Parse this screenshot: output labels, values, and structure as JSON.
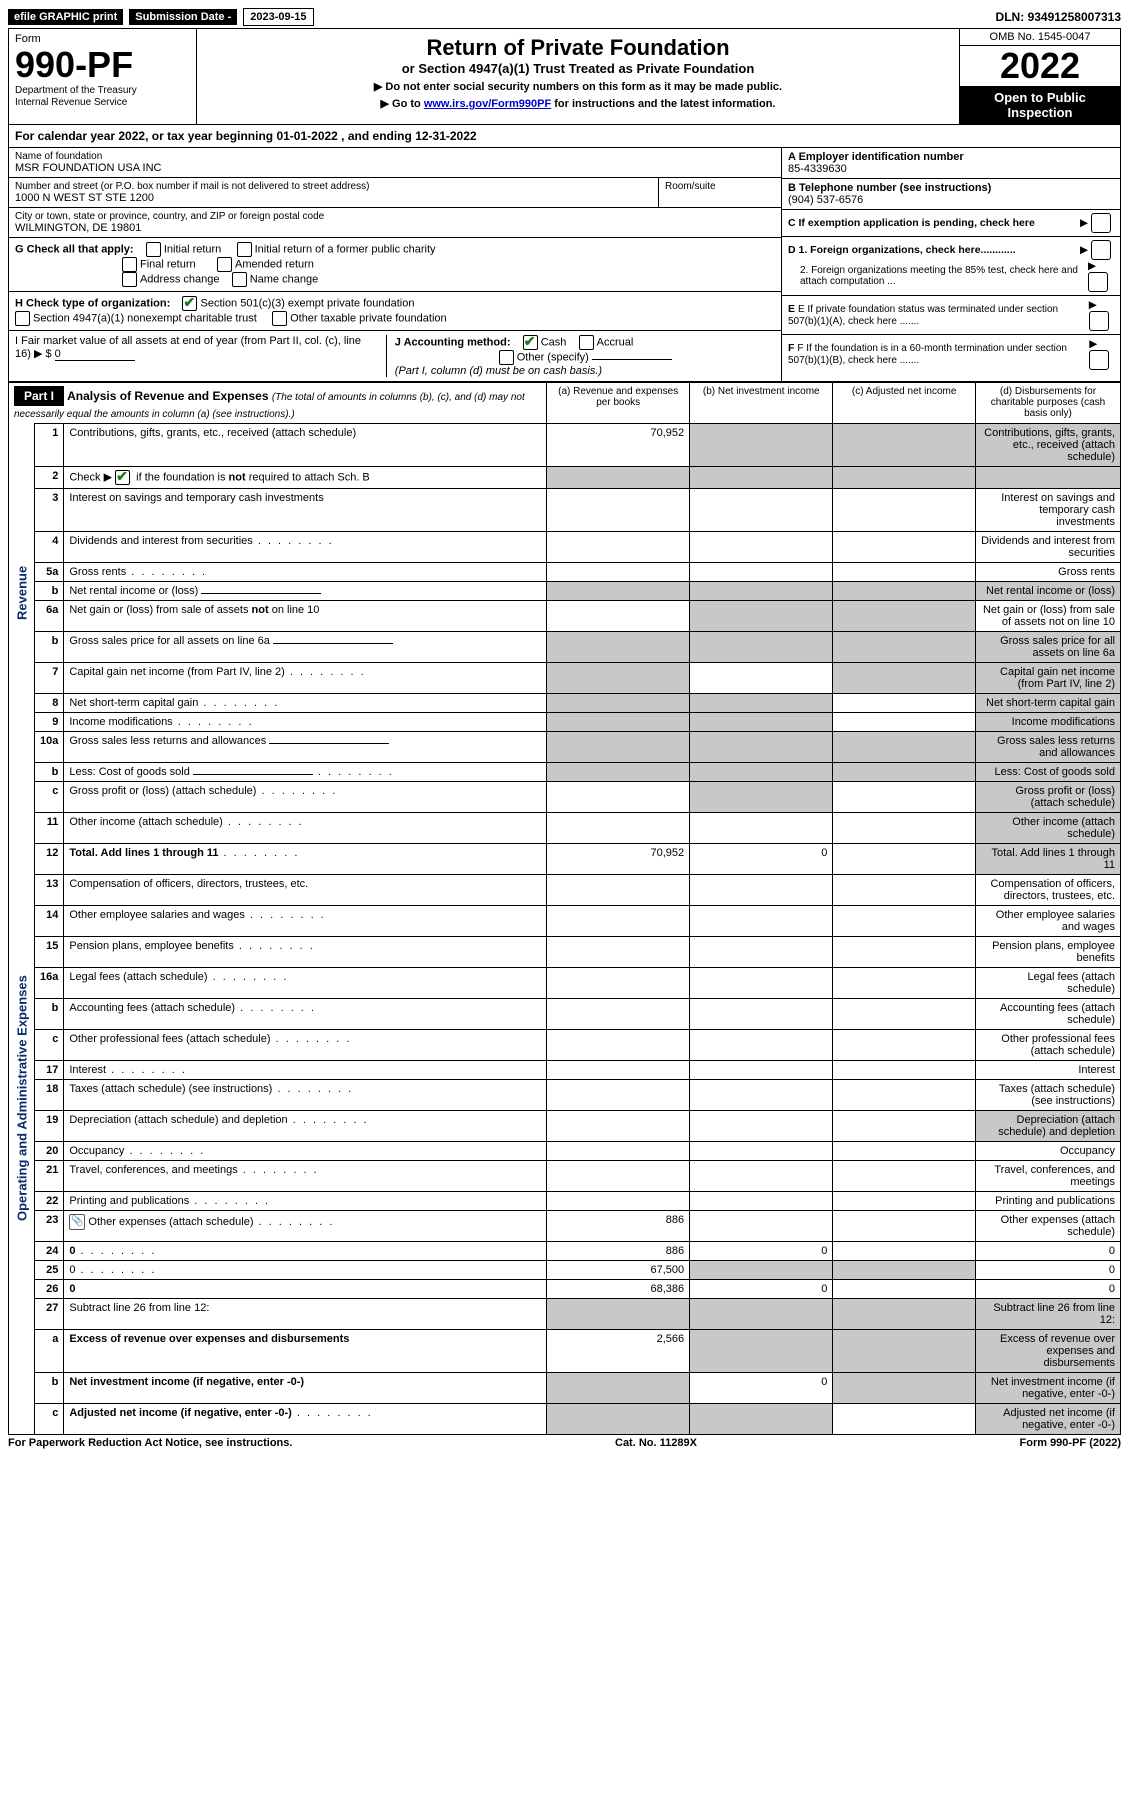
{
  "topbar": {
    "efile_label": "efile GRAPHIC print",
    "submission_label": "Submission Date -",
    "submission_date": "2023-09-15",
    "dln_label": "DLN:",
    "dln": "93491258007313"
  },
  "header": {
    "form_label": "Form",
    "form_number": "990-PF",
    "dept1": "Department of the Treasury",
    "dept2": "Internal Revenue Service",
    "title": "Return of Private Foundation",
    "subtitle": "or Section 4947(a)(1) Trust Treated as Private Foundation",
    "note1": "▶ Do not enter social security numbers on this form as it may be made public.",
    "note2_pre": "▶ Go to ",
    "note2_link": "www.irs.gov/Form990PF",
    "note2_post": " for instructions and the latest information.",
    "omb": "OMB No. 1545-0047",
    "year": "2022",
    "open_public": "Open to Public Inspection"
  },
  "calyear": {
    "text_pre": "For calendar year 2022, or tax year beginning ",
    "begin": "01-01-2022",
    "text_mid": " , and ending ",
    "end": "12-31-2022"
  },
  "info": {
    "name_label": "Name of foundation",
    "name": "MSR FOUNDATION USA INC",
    "addr_label": "Number and street (or P.O. box number if mail is not delivered to street address)",
    "addr": "1000 N WEST ST STE 1200",
    "room_label": "Room/suite",
    "city_label": "City or town, state or province, country, and ZIP or foreign postal code",
    "city": "WILMINGTON, DE  19801",
    "ein_label": "A Employer identification number",
    "ein": "85-4339630",
    "tel_label": "B Telephone number (see instructions)",
    "tel": "(904) 537-6576",
    "c_label": "C If exemption application is pending, check here",
    "d1": "D 1. Foreign organizations, check here............",
    "d2": "2. Foreign organizations meeting the 85% test, check here and attach computation ...",
    "e_label": "E  If private foundation status was terminated under section 507(b)(1)(A), check here .......",
    "f_label": "F  If the foundation is in a 60-month termination under section 507(b)(1)(B), check here .......",
    "g_label": "G Check all that apply:",
    "g_opts": [
      "Initial return",
      "Initial return of a former public charity",
      "Final return",
      "Amended return",
      "Address change",
      "Name change"
    ],
    "h_label": "H Check type of organization:",
    "h_opt1": "Section 501(c)(3) exempt private foundation",
    "h_opt2": "Section 4947(a)(1) nonexempt charitable trust",
    "h_opt3": "Other taxable private foundation",
    "i_label": "I Fair market value of all assets at end of year (from Part II, col. (c), line 16) ▶ $",
    "i_value": "0",
    "j_label": "J Accounting method:",
    "j_cash": "Cash",
    "j_accrual": "Accrual",
    "j_other": "Other (specify)",
    "j_note": "(Part I, column (d) must be on cash basis.)"
  },
  "part1": {
    "label": "Part I",
    "title": "Analysis of Revenue and Expenses",
    "title_note": "(The total of amounts in columns (b), (c), and (d) may not necessarily equal the amounts in column (a) (see instructions).)",
    "col_a": "(a)   Revenue and expenses per books",
    "col_b": "(b)   Net investment income",
    "col_c": "(c)   Adjusted net income",
    "col_d": "(d)   Disbursements for charitable purposes (cash basis only)",
    "side_revenue": "Revenue",
    "side_expenses": "Operating and Administrative Expenses"
  },
  "rows": [
    {
      "n": "1",
      "d": "Contributions, gifts, grants, etc., received (attach schedule)",
      "a": "70,952",
      "grey": [
        "b",
        "c",
        "d"
      ]
    },
    {
      "n": "2",
      "d": "Check ▶ ☑ if the foundation is not required to attach Sch. B",
      "nocols": true
    },
    {
      "n": "3",
      "d": "Interest on savings and temporary cash investments"
    },
    {
      "n": "4",
      "d": "Dividends and interest from securities",
      "dots": true
    },
    {
      "n": "5a",
      "d": "Gross rents",
      "dots": true
    },
    {
      "n": "b",
      "d": "Net rental income or (loss)",
      "line": true,
      "grey": [
        "a",
        "b",
        "c",
        "d"
      ]
    },
    {
      "n": "6a",
      "d": "Net gain or (loss) from sale of assets not on line 10",
      "grey": [
        "b",
        "c"
      ]
    },
    {
      "n": "b",
      "d": "Gross sales price for all assets on line 6a",
      "line": true,
      "grey": [
        "a",
        "b",
        "c",
        "d"
      ]
    },
    {
      "n": "7",
      "d": "Capital gain net income (from Part IV, line 2)",
      "dots": true,
      "grey": [
        "a",
        "c",
        "d"
      ]
    },
    {
      "n": "8",
      "d": "Net short-term capital gain",
      "dots": true,
      "grey": [
        "a",
        "b",
        "d"
      ]
    },
    {
      "n": "9",
      "d": "Income modifications",
      "dots": true,
      "grey": [
        "a",
        "b",
        "d"
      ]
    },
    {
      "n": "10a",
      "d": "Gross sales less returns and allowances",
      "line": true,
      "grey": [
        "a",
        "b",
        "c",
        "d"
      ]
    },
    {
      "n": "b",
      "d": "Less: Cost of goods sold",
      "dots": true,
      "line": true,
      "grey": [
        "a",
        "b",
        "c",
        "d"
      ]
    },
    {
      "n": "c",
      "d": "Gross profit or (loss) (attach schedule)",
      "dots": true,
      "grey": [
        "b",
        "d"
      ]
    },
    {
      "n": "11",
      "d": "Other income (attach schedule)",
      "dots": true,
      "grey": [
        "d"
      ]
    },
    {
      "n": "12",
      "d": "Total. Add lines 1 through 11",
      "bold": true,
      "dots": true,
      "a": "70,952",
      "b": "0",
      "grey": [
        "d"
      ]
    },
    {
      "n": "13",
      "d": "Compensation of officers, directors, trustees, etc."
    },
    {
      "n": "14",
      "d": "Other employee salaries and wages",
      "dots": true
    },
    {
      "n": "15",
      "d": "Pension plans, employee benefits",
      "dots": true
    },
    {
      "n": "16a",
      "d": "Legal fees (attach schedule)",
      "dots": true
    },
    {
      "n": "b",
      "d": "Accounting fees (attach schedule)",
      "dots": true
    },
    {
      "n": "c",
      "d": "Other professional fees (attach schedule)",
      "dots": true
    },
    {
      "n": "17",
      "d": "Interest",
      "dots": true
    },
    {
      "n": "18",
      "d": "Taxes (attach schedule) (see instructions)",
      "dots": true
    },
    {
      "n": "19",
      "d": "Depreciation (attach schedule) and depletion",
      "dots": true,
      "grey": [
        "d"
      ]
    },
    {
      "n": "20",
      "d": "Occupancy",
      "dots": true
    },
    {
      "n": "21",
      "d": "Travel, conferences, and meetings",
      "dots": true
    },
    {
      "n": "22",
      "d": "Printing and publications",
      "dots": true
    },
    {
      "n": "23",
      "d": "Other expenses (attach schedule)",
      "dots": true,
      "a": "886",
      "icon": true
    },
    {
      "n": "24",
      "d": "0",
      "bold": true,
      "dots": true,
      "a": "886",
      "b": "0"
    },
    {
      "n": "25",
      "d": "0",
      "dots": true,
      "a": "67,500",
      "grey": [
        "b",
        "c"
      ]
    },
    {
      "n": "26",
      "d": "0",
      "bold": true,
      "a": "68,386",
      "b": "0"
    },
    {
      "n": "27",
      "d": "Subtract line 26 from line 12:",
      "grey": [
        "a",
        "b",
        "c",
        "d"
      ]
    },
    {
      "n": "a",
      "d": "Excess of revenue over expenses and disbursements",
      "bold": true,
      "a": "2,566",
      "grey": [
        "b",
        "c",
        "d"
      ]
    },
    {
      "n": "b",
      "d": "Net investment income (if negative, enter -0-)",
      "bold": true,
      "grey": [
        "a",
        "c",
        "d"
      ],
      "b": "0"
    },
    {
      "n": "c",
      "d": "Adjusted net income (if negative, enter -0-)",
      "bold": true,
      "dots": true,
      "grey": [
        "a",
        "b",
        "d"
      ]
    }
  ],
  "footer": {
    "left": "For Paperwork Reduction Act Notice, see instructions.",
    "mid": "Cat. No. 11289X",
    "right": "Form 990-PF (2022)"
  }
}
